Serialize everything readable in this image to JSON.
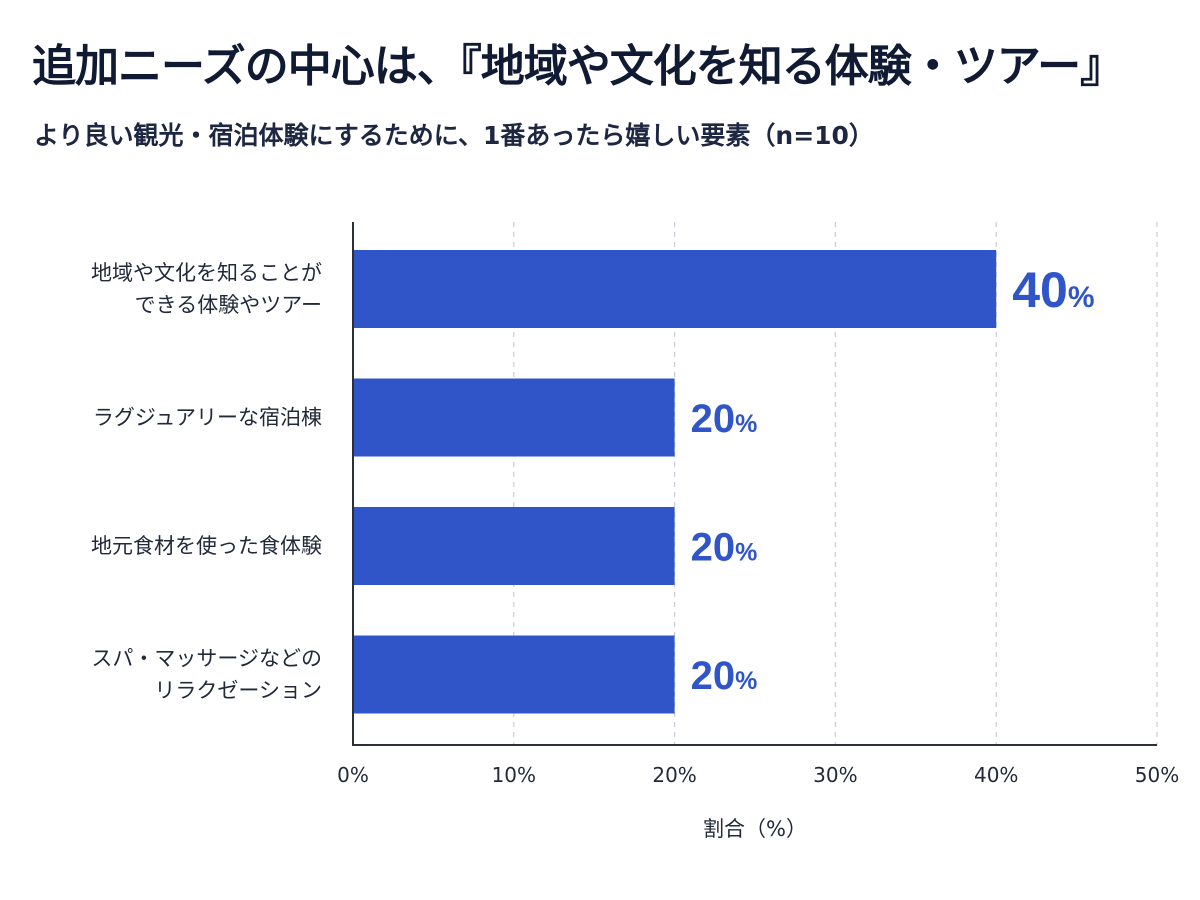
{
  "chart_data": {
    "type": "bar",
    "orientation": "horizontal",
    "title": "追加ニーズの中心は、『地域や文化を知る体験・ツアー』",
    "subtitle": "より良い観光・宿泊体験にするために、1番あったら嬉しい要素（n=10）",
    "categories": [
      [
        "地域や文化を知ることが",
        "できる体験やツアー"
      ],
      [
        "ラグジュアリーな宿泊棟"
      ],
      [
        "地元食材を使った食体験"
      ],
      [
        "スパ・マッサージなどの",
        "リラクゼーション"
      ]
    ],
    "values": [
      40,
      20,
      20,
      20
    ],
    "value_labels": [
      "40",
      "20",
      "20",
      "20"
    ],
    "value_unit": "%",
    "xlabel": "割合（%）",
    "xlim": [
      0,
      50
    ],
    "xticks": [
      0,
      10,
      20,
      30,
      40,
      50
    ],
    "xtick_labels": [
      "0%",
      "10%",
      "20%",
      "30%",
      "40%",
      "50%"
    ],
    "grid": "vertical-dashed",
    "bar_color": "#2f55c9",
    "label_color": "#2f55c9"
  }
}
